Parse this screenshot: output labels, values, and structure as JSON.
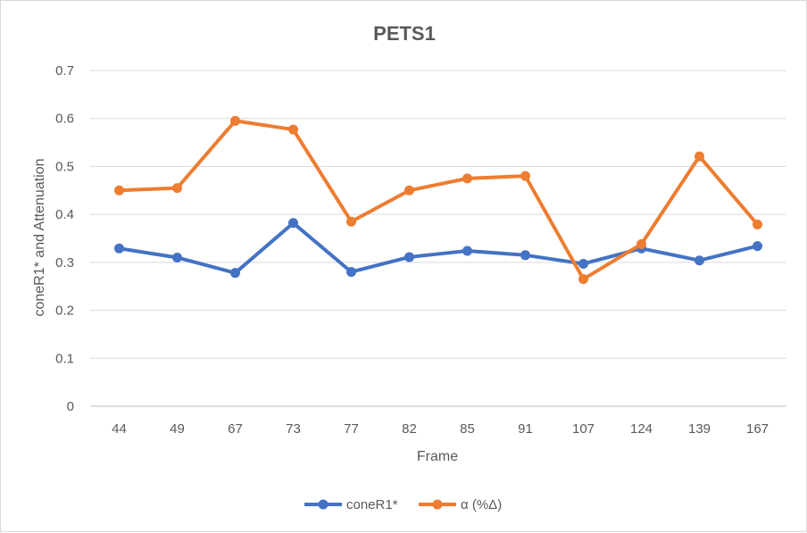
{
  "chart_data": {
    "type": "line",
    "title": "PETS1",
    "xlabel": "Frame",
    "ylabel": "coneR1* and Attenuation",
    "categories": [
      "44",
      "49",
      "67",
      "73",
      "77",
      "82",
      "85",
      "91",
      "107",
      "124",
      "139",
      "167"
    ],
    "ylim": [
      0,
      0.7
    ],
    "yticks": [
      "0",
      "0.1",
      "0.2",
      "0.3",
      "0.4",
      "0.5",
      "0.6",
      "0.7"
    ],
    "grid": true,
    "legend_position": "bottom",
    "series": [
      {
        "name": "coneR1*",
        "color": "#4472C4",
        "values": [
          0.329,
          0.31,
          0.278,
          0.382,
          0.28,
          0.311,
          0.324,
          0.315,
          0.297,
          0.329,
          0.304,
          0.334
        ]
      },
      {
        "name": "α (%Δ)",
        "color": "#ED7D31",
        "values": [
          0.45,
          0.455,
          0.595,
          0.577,
          0.385,
          0.45,
          0.475,
          0.48,
          0.265,
          0.338,
          0.521,
          0.379
        ]
      }
    ]
  }
}
